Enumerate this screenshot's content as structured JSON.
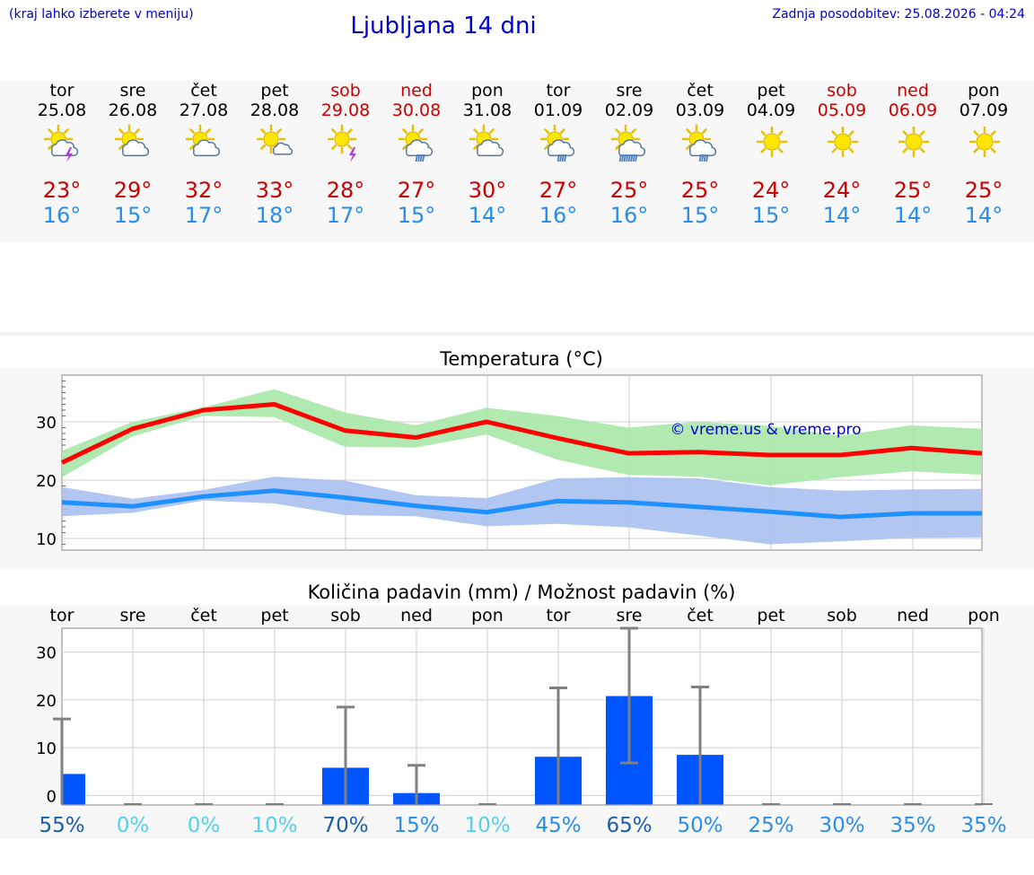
{
  "header": {
    "menu_hint": "(kraj lahko izberete v meniju)",
    "title": "Ljubljana 14 dni",
    "updated": "Zadnja posodobitev: 25.08.2026 - 04:24"
  },
  "colors": {
    "header_text": "#0000cc",
    "max_temp": "#cc0000",
    "min_temp": "#2a8ee8",
    "weekend": "#cc0000",
    "max_band": "#a8e8a8",
    "min_band": "#a8c0f0",
    "max_line": "#ff0000",
    "min_line": "#1e90ff",
    "precip_bar": "#0055ff",
    "error_bar": "#808080"
  },
  "days": [
    {
      "name": "tor",
      "date": "25.08",
      "icon": "sun-cloud-lightning",
      "tmax": "23°",
      "tmin": "16°",
      "weekend": false
    },
    {
      "name": "sre",
      "date": "26.08",
      "icon": "sun-cloud",
      "tmax": "29°",
      "tmin": "15°",
      "weekend": false
    },
    {
      "name": "čet",
      "date": "27.08",
      "icon": "sun-cloud",
      "tmax": "32°",
      "tmin": "17°",
      "weekend": false
    },
    {
      "name": "pet",
      "date": "28.08",
      "icon": "sun-small-cloud",
      "tmax": "33°",
      "tmin": "18°",
      "weekend": false
    },
    {
      "name": "sob",
      "date": "29.08",
      "icon": "sun-lightning",
      "tmax": "28°",
      "tmin": "17°",
      "weekend": true
    },
    {
      "name": "ned",
      "date": "30.08",
      "icon": "sun-cloud-rain",
      "tmax": "27°",
      "tmin": "15°",
      "weekend": true
    },
    {
      "name": "pon",
      "date": "31.08",
      "icon": "sun-cloud",
      "tmax": "30°",
      "tmin": "14°",
      "weekend": false
    },
    {
      "name": "tor",
      "date": "01.09",
      "icon": "sun-cloud-rain",
      "tmax": "27°",
      "tmin": "16°",
      "weekend": false
    },
    {
      "name": "sre",
      "date": "02.09",
      "icon": "sun-cloud-heavy-rain",
      "tmax": "25°",
      "tmin": "16°",
      "weekend": false
    },
    {
      "name": "čet",
      "date": "03.09",
      "icon": "sun-cloud-rain",
      "tmax": "25°",
      "tmin": "15°",
      "weekend": false
    },
    {
      "name": "pet",
      "date": "04.09",
      "icon": "sun",
      "tmax": "24°",
      "tmin": "15°",
      "weekend": false
    },
    {
      "name": "sob",
      "date": "05.09",
      "icon": "sun",
      "tmax": "24°",
      "tmin": "14°",
      "weekend": true
    },
    {
      "name": "ned",
      "date": "06.09",
      "icon": "sun",
      "tmax": "25°",
      "tmin": "14°",
      "weekend": true
    },
    {
      "name": "pon",
      "date": "07.09",
      "icon": "sun",
      "tmax": "25°",
      "tmin": "14°",
      "weekend": false
    }
  ],
  "chart_data": [
    {
      "type": "line",
      "title": "Temperatura (°C)",
      "watermark": "© vreme.us & vreme.pro",
      "ylim": [
        8,
        38
      ],
      "yticks": [
        10,
        20,
        30
      ],
      "grid": true,
      "x": [
        "25.08",
        "26.08",
        "27.08",
        "28.08",
        "29.08",
        "30.08",
        "31.08",
        "01.09",
        "02.09",
        "03.09",
        "04.09",
        "05.09",
        "06.09",
        "07.09"
      ],
      "series": [
        {
          "role": "max",
          "values": [
            23,
            28.8,
            32,
            33,
            28.5,
            27.3,
            30,
            27.2,
            24.6,
            24.8,
            24.3,
            24.3,
            25.5,
            24.6
          ],
          "low": [
            20.5,
            27.5,
            31,
            30.8,
            25.7,
            25.6,
            27.8,
            23.5,
            20.9,
            20.6,
            19.1,
            20.5,
            21.5,
            20.9
          ],
          "high": [
            25,
            30,
            32.5,
            35.6,
            31.6,
            29.4,
            32.4,
            31,
            29,
            30,
            29.3,
            27.6,
            29.4,
            28.8
          ]
        },
        {
          "role": "min",
          "values": [
            16.2,
            15.5,
            17.2,
            18.2,
            17,
            15.6,
            14.5,
            16.4,
            16.2,
            15.4,
            14.6,
            13.7,
            14.3,
            14.3
          ],
          "low": [
            13.8,
            14.4,
            16.5,
            16,
            14,
            13.8,
            12.1,
            12.5,
            11.9,
            10.5,
            9,
            9.5,
            10.1,
            10.2
          ],
          "high": [
            18.8,
            16.8,
            18.3,
            20.6,
            19.9,
            17.4,
            16.9,
            20.3,
            20.5,
            20.3,
            18.8,
            18.2,
            18.4,
            18.5
          ]
        }
      ]
    },
    {
      "type": "bar",
      "title": "Količina padavin (mm) / Možnost padavin (%)",
      "ylim": [
        -2,
        35
      ],
      "yticks": [
        0,
        10,
        20,
        30
      ],
      "grid": true,
      "categories": [
        "tor",
        "sre",
        "čet",
        "pet",
        "sob",
        "ned",
        "pon",
        "tor",
        "sre",
        "čet",
        "pet",
        "sob",
        "ned",
        "pon"
      ],
      "values": [
        4.5,
        0,
        0,
        0,
        5.8,
        0.5,
        0,
        8.1,
        20.8,
        8.5,
        0,
        0,
        0,
        0
      ],
      "error_high": [
        16,
        0,
        0,
        0,
        18.5,
        6.3,
        0,
        22.5,
        35,
        22.7,
        0,
        0,
        0,
        0
      ],
      "error_low": [
        0,
        0,
        0,
        0,
        0,
        0,
        0,
        0,
        6.8,
        0,
        0,
        0,
        0,
        0
      ],
      "probabilities": [
        "55%",
        "0%",
        "0%",
        "10%",
        "70%",
        "15%",
        "10%",
        "45%",
        "65%",
        "50%",
        "25%",
        "30%",
        "35%",
        "35%"
      ],
      "probability_colors": [
        "#1a5fa8",
        "#55d0e8",
        "#55d0e8",
        "#55d0e8",
        "#1a5fa8",
        "#2a8ee8",
        "#55d0e8",
        "#2a8ee8",
        "#1a5fa8",
        "#2a8ee8",
        "#2a8ee8",
        "#2a8ee8",
        "#2a8ee8",
        "#2a8ee8"
      ]
    }
  ]
}
